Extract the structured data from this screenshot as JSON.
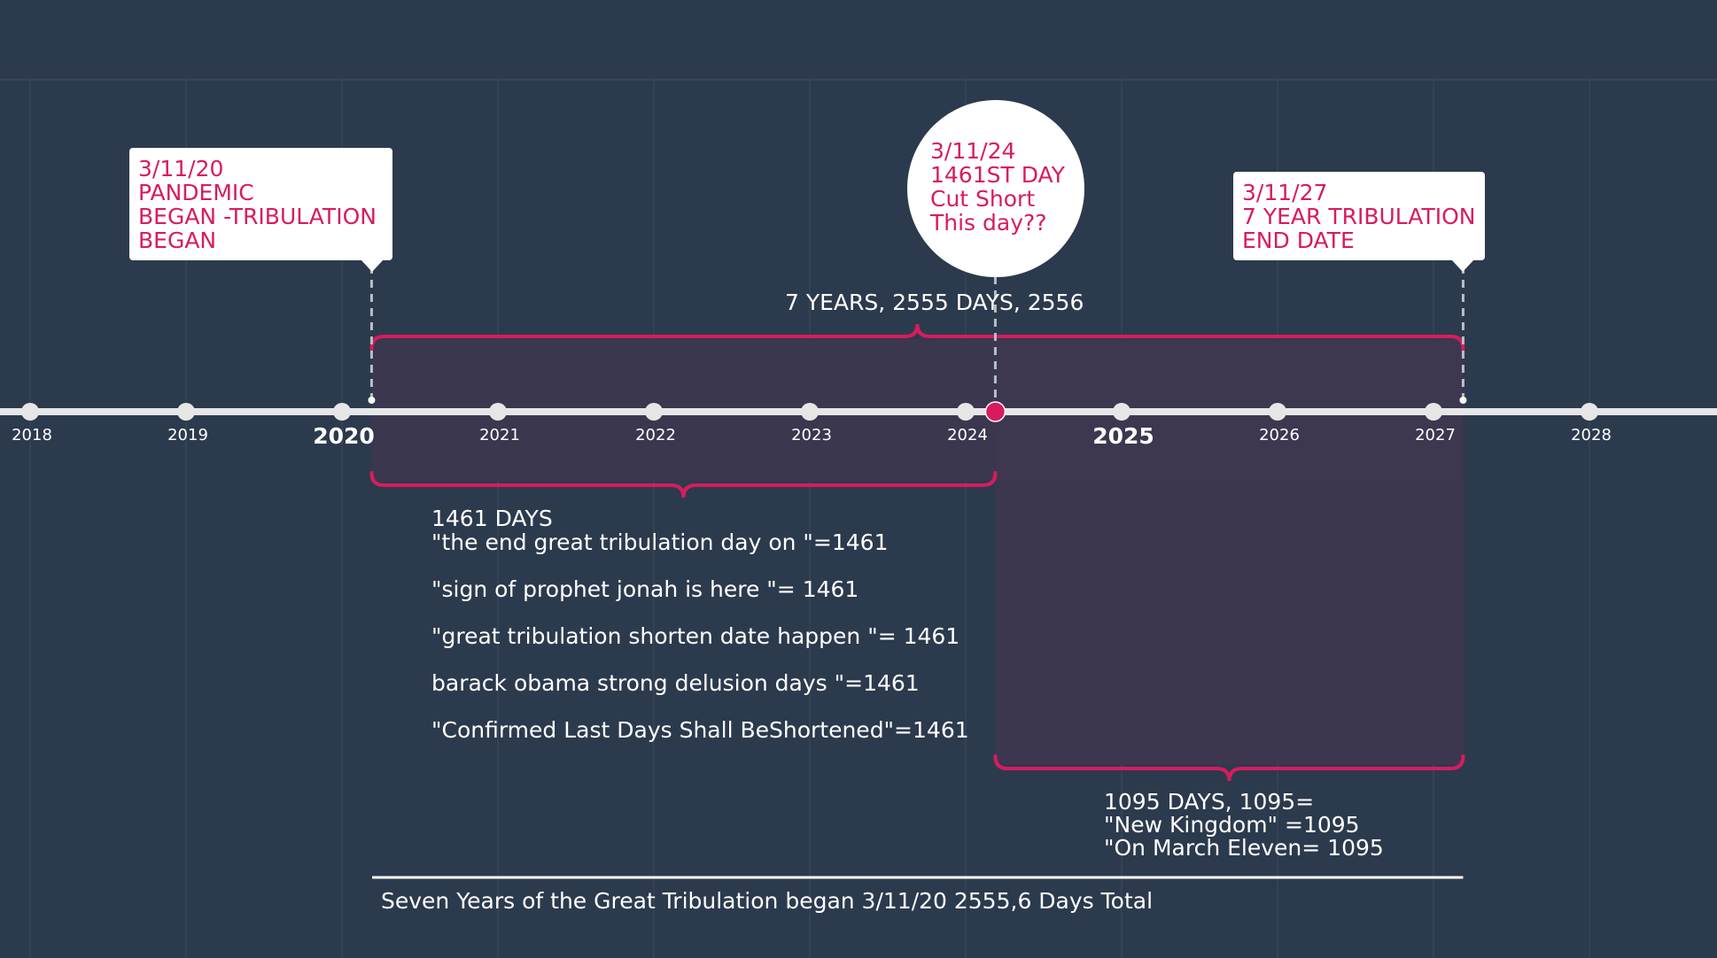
{
  "colors": {
    "background": "#2c3a4d",
    "accent": "#d81b60",
    "axis": "#e6e6e6",
    "shade": "#3d374f",
    "text": "#ffffff"
  },
  "timeline": {
    "years": [
      "2018",
      "2019",
      "2020",
      "2021",
      "2022",
      "2023",
      "2024",
      "2025",
      "2026",
      "2027",
      "2028"
    ],
    "major_years": [
      "2020",
      "2025"
    ],
    "events": [
      {
        "label": "3/11/20",
        "year": 2020.19
      },
      {
        "label": "3/11/24",
        "year": 2024.19
      },
      {
        "label": "3/11/27",
        "year": 2027.19
      }
    ]
  },
  "callouts": {
    "start": {
      "lines": [
        "3/11/20",
        "PANDEMIC",
        "BEGAN -TRIBULATION",
        "BEGAN"
      ]
    },
    "middle": {
      "lines": [
        "3/11/24",
        "1461ST DAY",
        "Cut Short",
        "This day??"
      ]
    },
    "end": {
      "lines": [
        "3/11/27",
        "7 YEAR TRIBULATION",
        "END DATE"
      ]
    }
  },
  "spans": {
    "total_label": "7 YEARS, 2555 DAYS, 2556",
    "first_label_lines": [
      "1461 DAYS",
      "\"the end great tribulation day on \"=1461"
    ],
    "first_extra_lines": [
      "\"sign of prophet jonah is here \"= 1461",
      "\"great tribulation shorten date happen \"= 1461",
      "barack obama strong delusion days \"=1461",
      "\"Confirmed Last Days Shall BeShortened\"=1461"
    ],
    "second_label_lines": [
      "1095 DAYS, 1095=",
      "\"New Kingdom\" =1095",
      "\"On March Eleven= 1095"
    ]
  },
  "footer": {
    "text": "Seven Years of the Great Tribulation began 3/11/20 2555,6 Days Total"
  }
}
